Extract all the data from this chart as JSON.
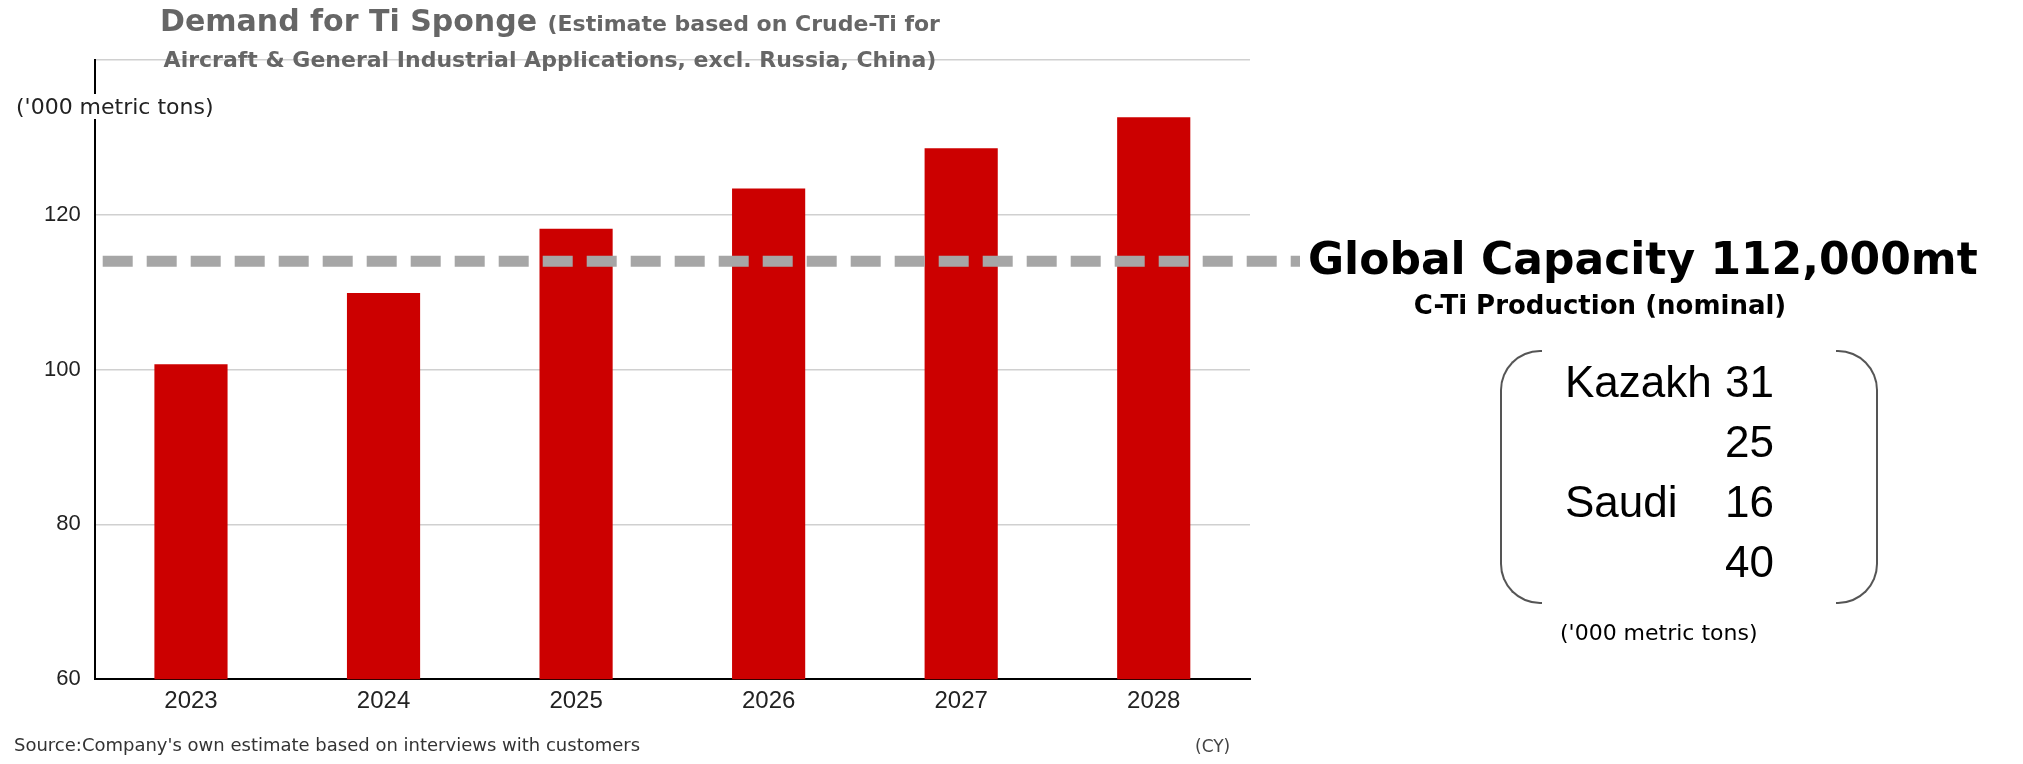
{
  "chart_data": [
    {
      "type": "bar",
      "title": "Demand for Ti Sponge",
      "subtitle": "(Estimate based on Crude-Ti for Aircraft & General Industrial Applications, excl. Russia,  China)",
      "ylabel": "('000 metric tons)",
      "xlabel": "(CY)",
      "categories": [
        "2023",
        "2024",
        "2025",
        "2026",
        "2027",
        "2028"
      ],
      "values": [
        100.7,
        109.9,
        118.2,
        123.4,
        128.6,
        132.6
      ],
      "color": "#cc0000",
      "ylim": [
        60,
        140
      ],
      "yticks": [
        60,
        80,
        100,
        120,
        {
          "value": 140,
          "label": null
        }
      ],
      "grid": "y",
      "ref_lines": [
        {
          "axis": "y",
          "value": 114,
          "label": "Global Capacity 112,000mt",
          "color": "#a6a6a6",
          "line_style": "dashed"
        }
      ],
      "annotations": [
        "Source:Company's own estimate based on interviews with customers"
      ]
    },
    {
      "type": "other",
      "title": "C-Ti Production (nominal)",
      "annotations": [
        "Kazakh 31",
        "25",
        "Saudi 16",
        "40",
        "('000 metric tons)"
      ]
    }
  ]
}
